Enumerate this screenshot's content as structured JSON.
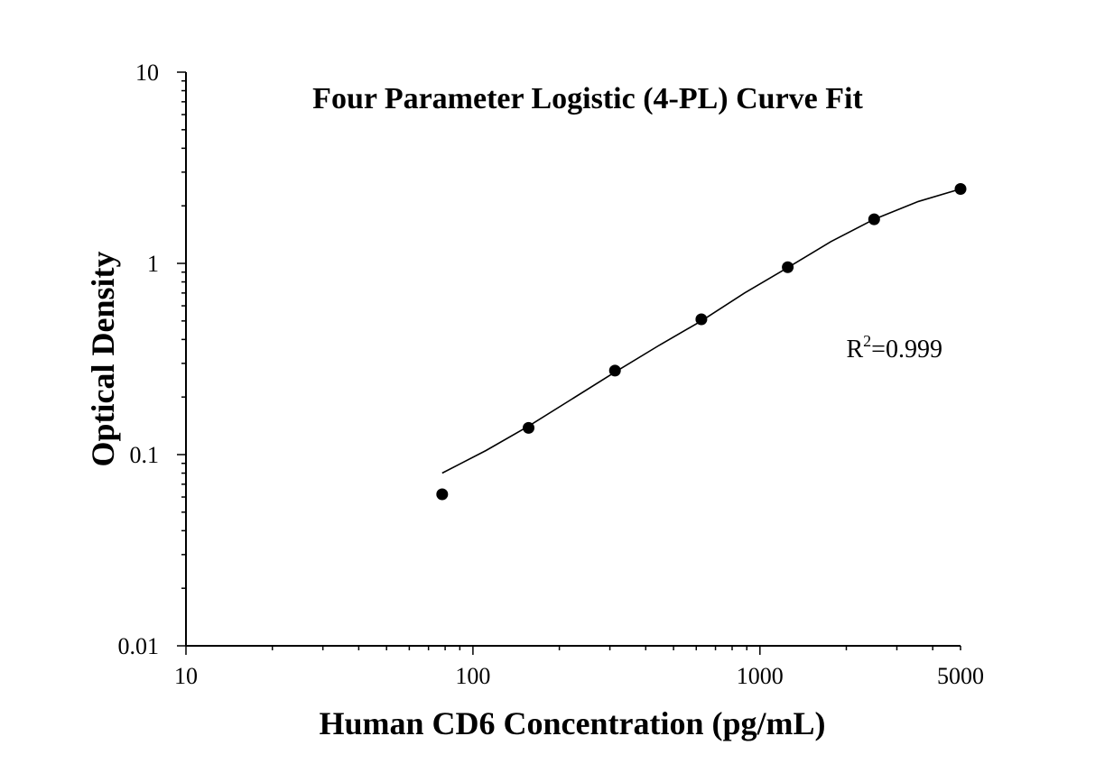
{
  "chart_data": {
    "type": "scatter",
    "title": "Four Parameter Logistic (4-PL) Curve Fit",
    "xlabel": "Human CD6 Concentration (pg/mL)",
    "ylabel": "Optical Density",
    "x_scale": "log",
    "y_scale": "log",
    "xlim": [
      10,
      5000
    ],
    "ylim": [
      0.01,
      10
    ],
    "x_tick_labels": [
      {
        "value": 10,
        "label": "10"
      },
      {
        "value": 100,
        "label": "100"
      },
      {
        "value": 1000,
        "label": "1000"
      },
      {
        "value": 5000,
        "label": "5000"
      }
    ],
    "y_tick_labels": [
      {
        "value": 0.01,
        "label": "0.01"
      },
      {
        "value": 0.1,
        "label": "0.1"
      },
      {
        "value": 1,
        "label": "1"
      },
      {
        "value": 10,
        "label": "10"
      }
    ],
    "grid": false,
    "series": [
      {
        "type": "scatter",
        "color": "#000000",
        "points": [
          {
            "x": 78.125,
            "y": 0.062
          },
          {
            "x": 156.25,
            "y": 0.138
          },
          {
            "x": 312.5,
            "y": 0.275
          },
          {
            "x": 625,
            "y": 0.51
          },
          {
            "x": 1250,
            "y": 0.955
          },
          {
            "x": 2500,
            "y": 1.7
          },
          {
            "x": 5000,
            "y": 2.45
          }
        ]
      },
      {
        "type": "line",
        "color": "#000000",
        "fit": "4-PL",
        "curve": [
          {
            "x": 78.125,
            "y": 0.08
          },
          {
            "x": 111,
            "y": 0.105
          },
          {
            "x": 156.25,
            "y": 0.141
          },
          {
            "x": 221,
            "y": 0.195
          },
          {
            "x": 312.5,
            "y": 0.27
          },
          {
            "x": 442,
            "y": 0.37
          },
          {
            "x": 625,
            "y": 0.5
          },
          {
            "x": 884,
            "y": 0.7
          },
          {
            "x": 1250,
            "y": 0.95
          },
          {
            "x": 1768,
            "y": 1.3
          },
          {
            "x": 2500,
            "y": 1.7
          },
          {
            "x": 3536,
            "y": 2.1
          },
          {
            "x": 5000,
            "y": 2.45
          }
        ]
      }
    ],
    "annotations": [
      {
        "base": "R",
        "sup": "2",
        "text": "=0.999",
        "x": 2000,
        "y": 0.36
      }
    ]
  }
}
